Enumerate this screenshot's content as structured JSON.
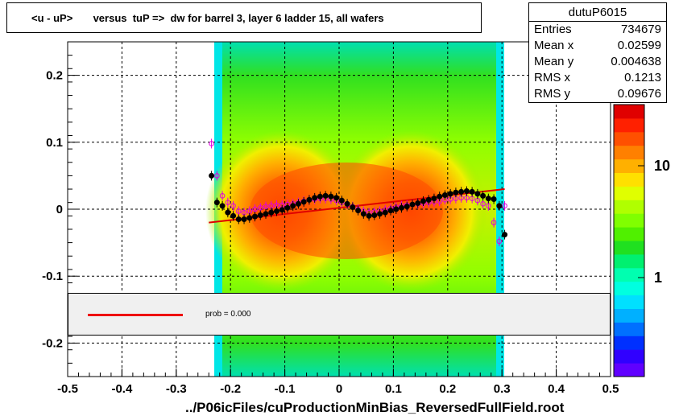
{
  "chart_data": {
    "type": "heatmap",
    "title": "<u - uP>       versus  tuP =>  dw for barrel 3, layer 6 ladder 15, all wafers",
    "xlabel": "../P06icFiles/cuProductionMinBias_ReversedFullField.root",
    "xlim": [
      -0.5,
      0.5
    ],
    "ylim": [
      -0.25,
      0.25
    ],
    "x_ticks": [
      "-0.5",
      "-0.4",
      "-0.3",
      "-0.2",
      "-0.1",
      "0",
      "0.1",
      "0.2",
      "0.3",
      "0.4",
      "0.5"
    ],
    "y_ticks": [
      "-0.2",
      "-0.1",
      "0",
      "0.1",
      "0.2"
    ],
    "z_scale": "log",
    "z_ticks": [
      "1",
      "10"
    ],
    "grid": true,
    "stats": {
      "name": "dutuP6015",
      "rows": [
        {
          "label": "Entries",
          "value": "734679"
        },
        {
          "label": "Mean x",
          "value": "0.02599"
        },
        {
          "label": "Mean y",
          "value": "0.004638"
        },
        {
          "label": "RMS x",
          "value": "0.1213"
        },
        {
          "label": "RMS y",
          "value": "0.09676"
        }
      ]
    },
    "legend": {
      "label": "prob = 0.000",
      "color": "#e00000"
    },
    "profile_black": {
      "x": [
        -0.235,
        -0.225,
        -0.215,
        -0.205,
        -0.195,
        -0.185,
        -0.175,
        -0.165,
        -0.155,
        -0.145,
        -0.135,
        -0.125,
        -0.115,
        -0.105,
        -0.095,
        -0.085,
        -0.075,
        -0.065,
        -0.055,
        -0.045,
        -0.035,
        -0.025,
        -0.015,
        -0.005,
        0.005,
        0.015,
        0.025,
        0.035,
        0.045,
        0.055,
        0.065,
        0.075,
        0.085,
        0.095,
        0.105,
        0.115,
        0.125,
        0.135,
        0.145,
        0.155,
        0.165,
        0.175,
        0.185,
        0.195,
        0.205,
        0.215,
        0.225,
        0.235,
        0.245,
        0.255,
        0.265,
        0.275,
        0.285,
        0.295,
        0.305
      ],
      "y": [
        0.05,
        0.01,
        0.005,
        -0.005,
        -0.01,
        -0.015,
        -0.015,
        -0.013,
        -0.011,
        -0.009,
        -0.007,
        -0.005,
        -0.003,
        -0.001,
        0.002,
        0.005,
        0.008,
        0.011,
        0.014,
        0.017,
        0.019,
        0.02,
        0.019,
        0.017,
        0.013,
        0.008,
        0.003,
        -0.002,
        -0.007,
        -0.01,
        -0.009,
        -0.007,
        -0.005,
        -0.002,
        0.0,
        0.002,
        0.004,
        0.007,
        0.009,
        0.012,
        0.014,
        0.016,
        0.019,
        0.021,
        0.023,
        0.025,
        0.026,
        0.027,
        0.026,
        0.023,
        0.02,
        0.016,
        0.015,
        0.005,
        -0.038
      ]
    },
    "profile_magenta": {
      "x": [
        -0.235,
        -0.225,
        -0.215,
        -0.205,
        -0.195,
        -0.185,
        -0.175,
        -0.165,
        -0.155,
        -0.145,
        -0.135,
        -0.125,
        -0.115,
        -0.105,
        -0.095,
        -0.085,
        -0.075,
        -0.065,
        -0.055,
        -0.045,
        -0.035,
        -0.025,
        -0.015,
        -0.005,
        0.005,
        0.015,
        0.025,
        0.035,
        0.045,
        0.055,
        0.065,
        0.075,
        0.085,
        0.095,
        0.105,
        0.115,
        0.125,
        0.135,
        0.145,
        0.155,
        0.165,
        0.175,
        0.185,
        0.195,
        0.205,
        0.215,
        0.225,
        0.235,
        0.245,
        0.255,
        0.265,
        0.275,
        0.285,
        0.295,
        0.305
      ],
      "y": [
        0.098,
        0.05,
        0.02,
        0.01,
        0.005,
        -0.003,
        -0.005,
        -0.003,
        0.0,
        0.002,
        0.004,
        0.005,
        0.006,
        0.006,
        0.007,
        0.008,
        0.01,
        0.012,
        0.014,
        0.015,
        0.016,
        0.016,
        0.015,
        0.013,
        0.01,
        0.007,
        0.004,
        0.0,
        -0.003,
        -0.005,
        -0.004,
        -0.003,
        -0.001,
        0.001,
        0.003,
        0.005,
        0.006,
        0.007,
        0.008,
        0.009,
        0.01,
        0.011,
        0.012,
        0.014,
        0.015,
        0.016,
        0.017,
        0.017,
        0.016,
        0.013,
        0.008,
        0.005,
        -0.02,
        -0.048,
        0.005
      ]
    },
    "fit_line": {
      "x": [
        -0.24,
        0.305
      ],
      "y": [
        -0.02,
        0.03
      ]
    }
  }
}
